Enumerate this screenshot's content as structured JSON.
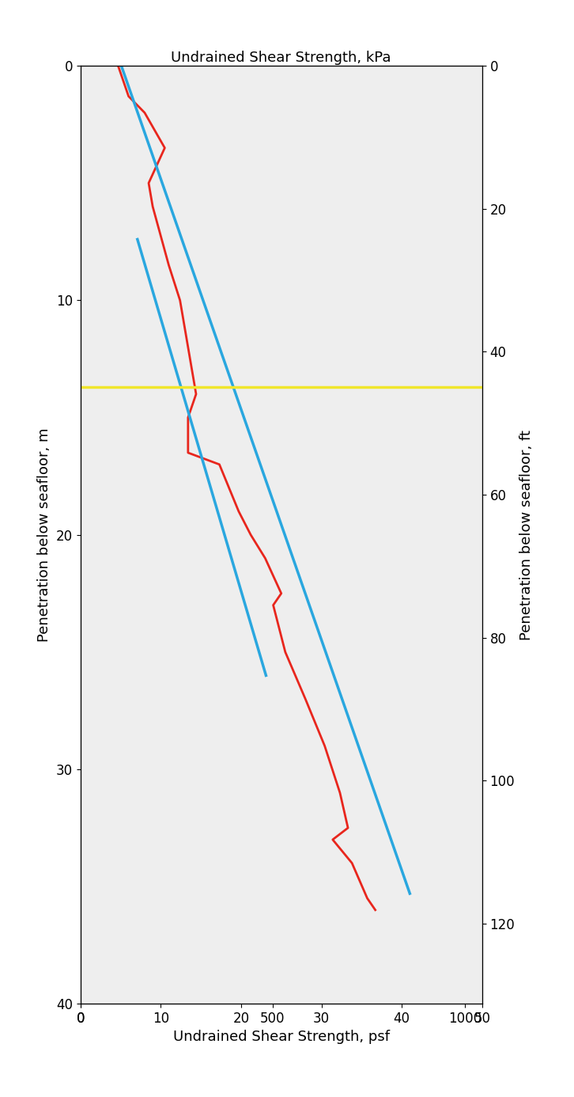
{
  "chart_data": {
    "type": "line",
    "xlabel": "Undrained Shear Strength, kPa",
    "ylabel": "Penetration below seafloor, m",
    "x2label": "Undrained Shear Strength, psf",
    "y2label": "Penetration below seafloor, ft",
    "xlim": [
      0,
      50
    ],
    "xticks": [
      0,
      10,
      20,
      30,
      40,
      50
    ],
    "ylim": [
      0,
      40
    ],
    "yticks": [
      0,
      10,
      20,
      30,
      40
    ],
    "x2lim": [
      0,
      1044.3
    ],
    "x2ticks": [
      0,
      500,
      1000
    ],
    "y2lim": [
      0,
      131.2
    ],
    "y2ticks": [
      0,
      20,
      40,
      60,
      80,
      100,
      120
    ],
    "grid": false,
    "series": [
      {
        "color": "#e8261d",
        "line_style": "solid",
        "x": [
          4.7,
          6.0,
          8.0,
          10.5,
          8.5,
          9.0,
          11.0,
          12.4,
          14.4,
          13.4,
          13.4,
          17.3,
          19.7,
          21.2,
          23.0,
          25.0,
          24.0,
          25.5,
          28.0,
          30.4,
          32.3,
          33.3,
          31.4,
          33.8,
          35.7,
          36.7
        ],
        "values": [
          0,
          1.3,
          2.0,
          3.5,
          5.0,
          6.0,
          8.5,
          10.0,
          14.0,
          15.0,
          16.5,
          17.0,
          19.0,
          20.0,
          21.0,
          22.5,
          23.0,
          25.0,
          27.0,
          29.0,
          31.0,
          32.5,
          33.0,
          34.0,
          35.5,
          36.0
        ]
      },
      {
        "color": "#2aa7df",
        "line_style": "solid",
        "x": [
          5.1,
          41.0
        ],
        "values": [
          0,
          35.3
        ]
      },
      {
        "color": "#2aa7df",
        "line_style": "solid",
        "x": [
          7.1,
          23.1
        ],
        "values": [
          7.4,
          26.0
        ]
      },
      {
        "color": "#f0e62c",
        "line_style": "solid",
        "x": [
          0,
          50
        ],
        "values": [
          13.7,
          13.7
        ]
      }
    ]
  }
}
